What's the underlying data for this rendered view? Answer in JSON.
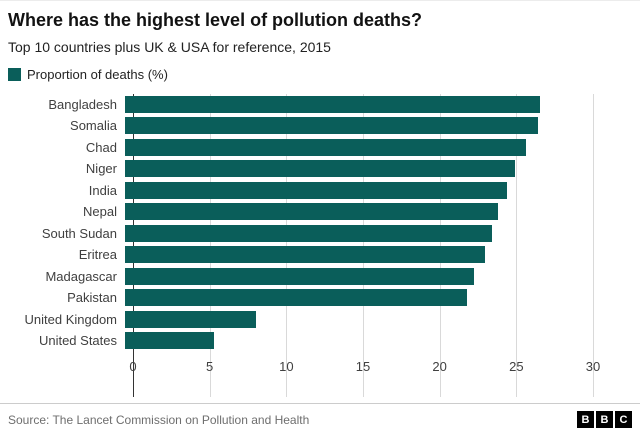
{
  "header": {
    "title": "Where has the highest level of pollution deaths?",
    "subtitle": "Top 10 countries plus UK & USA for reference, 2015"
  },
  "legend": {
    "label": "Proportion of deaths (%)",
    "color": "#0a5e5a"
  },
  "chart_data": {
    "type": "bar",
    "orientation": "horizontal",
    "title": "Where has the highest level of pollution deaths?",
    "xlabel": "Proportion of deaths (%)",
    "ylabel": "",
    "categories": [
      "Bangladesh",
      "Somalia",
      "Chad",
      "Niger",
      "India",
      "Nepal",
      "South Sudan",
      "Eritrea",
      "Madagascar",
      "Pakistan",
      "United Kingdom",
      "United States"
    ],
    "values": [
      26.6,
      26.5,
      25.7,
      25.0,
      24.5,
      23.9,
      23.5,
      23.1,
      22.4,
      21.9,
      8.4,
      5.7
    ],
    "xlim": [
      0,
      30
    ],
    "xticks": [
      0,
      5,
      10,
      15,
      20,
      25,
      30
    ],
    "bar_color": "#0a5e5a",
    "grid": true,
    "legend_position": "top"
  },
  "footer": {
    "source": "Source: The Lancet Commission on Pollution and Health",
    "logo_letters": [
      "B",
      "B",
      "C"
    ]
  }
}
